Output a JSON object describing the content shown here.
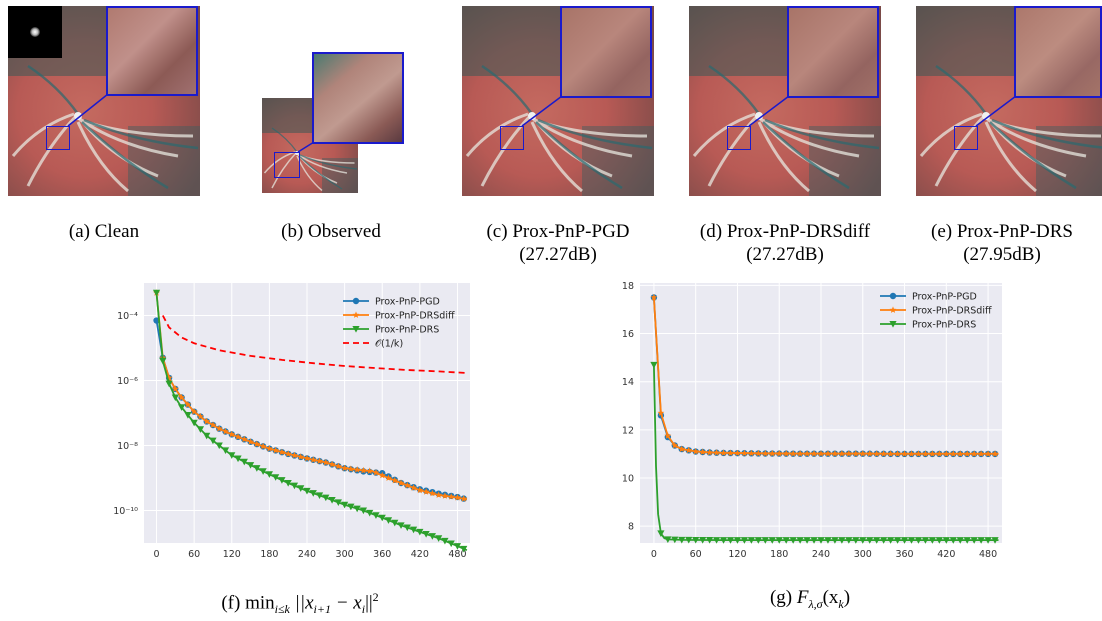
{
  "panels": [
    {
      "id": "a",
      "caption": "(a) Clean",
      "sub": ""
    },
    {
      "id": "b",
      "caption": "(b) Observed",
      "sub": ""
    },
    {
      "id": "c",
      "caption": "(c) Prox-PnP-PGD",
      "sub": "(27.27dB)"
    },
    {
      "id": "d",
      "caption": "(d) Prox-PnP-DRSdiff",
      "sub": "(27.27dB)"
    },
    {
      "id": "e",
      "caption": "(e) Prox-PnP-DRS",
      "sub": "(27.95dB)"
    }
  ],
  "colors": {
    "pgd": "#1f77b4",
    "drsdiff": "#ff7f0e",
    "drs": "#2ca02c",
    "ref": "#ff0000",
    "zoom_box": "#1a1acc",
    "plot_bg": "#eaeaf2"
  },
  "figure_f": {
    "caption_prefix": "(f) ",
    "caption_math": "min",
    "caption_sub": "i≤k",
    "caption_rest": " ||x",
    "caption_sub2": "i+1",
    "caption_rest2": " − x",
    "caption_sub3": "i",
    "caption_rest3": "||",
    "caption_sup": "2"
  },
  "figure_g": {
    "caption_prefix": "(g) ",
    "caption_F": "F",
    "caption_sub": "λ,σ",
    "caption_rest": "(x",
    "caption_sub2": "k",
    "caption_rest2": ")"
  },
  "chart_data": [
    {
      "type": "line",
      "yscale": "log",
      "xlim": [
        -20,
        500
      ],
      "ylim": [
        1e-11,
        0.001
      ],
      "xticks": [
        0,
        60,
        120,
        180,
        240,
        300,
        360,
        420,
        480
      ],
      "yticks": [
        {
          "v": 1e-10,
          "label": "10⁻¹⁰"
        },
        {
          "v": 1e-08,
          "label": "10⁻⁸"
        },
        {
          "v": 1e-06,
          "label": "10⁻⁶"
        },
        {
          "v": 0.0001,
          "label": "10⁻⁴"
        }
      ],
      "grid": true,
      "legend_position": "top-right",
      "series": [
        {
          "name": "Prox-PnP-PGD",
          "marker": "circle",
          "color": "#1f77b4",
          "x": [
            0,
            10,
            20,
            30,
            40,
            60,
            80,
            100,
            120,
            150,
            180,
            210,
            240,
            270,
            300,
            330,
            345,
            360,
            390,
            420,
            450,
            480,
            495
          ],
          "y": [
            7e-05,
            5e-06,
            1.2e-06,
            5.5e-07,
            3e-07,
            1.1e-07,
            5.5e-08,
            3.3e-08,
            2.2e-08,
            1.3e-08,
            8e-09,
            5.5e-09,
            4e-09,
            3e-09,
            2e-09,
            1.6e-09,
            1.5e-09,
            1.4e-09,
            7e-10,
            4.5e-10,
            3.3e-10,
            2.6e-10,
            2.2e-10
          ]
        },
        {
          "name": "Prox-PnP-DRSdiff",
          "marker": "star",
          "color": "#ff7f0e",
          "x": [
            0,
            10,
            20,
            30,
            40,
            60,
            80,
            100,
            120,
            150,
            180,
            210,
            240,
            270,
            300,
            330,
            345,
            360,
            390,
            420,
            450,
            480,
            495
          ],
          "y": [
            0.0005,
            5e-06,
            1.2e-06,
            5.5e-07,
            3e-07,
            1.1e-07,
            5.5e-08,
            3.3e-08,
            2.2e-08,
            1.3e-08,
            8e-09,
            5.5e-09,
            4e-09,
            3e-09,
            2e-09,
            1.7e-09,
            1.6e-09,
            1.2e-09,
            7e-10,
            4.2e-10,
            3e-10,
            2.5e-10,
            2.2e-10
          ]
        },
        {
          "name": "Prox-PnP-DRS",
          "marker": "triangle",
          "color": "#2ca02c",
          "x": [
            0,
            10,
            20,
            30,
            40,
            60,
            80,
            100,
            120,
            150,
            180,
            210,
            240,
            270,
            300,
            330,
            360,
            390,
            420,
            450,
            480,
            495
          ],
          "y": [
            0.0005,
            4e-06,
            8e-07,
            3e-07,
            1.5e-07,
            5e-08,
            2e-08,
            1e-08,
            5e-09,
            2.5e-09,
            1.3e-09,
            7e-10,
            4e-10,
            2.5e-10,
            1.5e-10,
            1e-10,
            6e-11,
            3.5e-11,
            2.2e-11,
            1.4e-11,
            8e-12,
            6e-12
          ]
        },
        {
          "name": "𝒪(1/k)",
          "marker": "none",
          "dashed": true,
          "color": "#ff0000",
          "x": [
            10,
            20,
            40,
            60,
            100,
            150,
            200,
            250,
            300,
            350,
            400,
            450,
            495
          ],
          "y": [
            0.0001,
            4.3e-05,
            2.1e-05,
            1.4e-05,
            8.5e-06,
            5.7e-06,
            4.3e-06,
            3.4e-06,
            2.8e-06,
            2.4e-06,
            2.1e-06,
            1.9e-06,
            1.7e-06
          ]
        }
      ]
    },
    {
      "type": "line",
      "yscale": "linear",
      "xlim": [
        -20,
        500
      ],
      "ylim": [
        7.3,
        18.1
      ],
      "xticks": [
        0,
        60,
        120,
        180,
        240,
        300,
        360,
        420,
        480
      ],
      "yticks": [
        {
          "v": 8,
          "label": "8"
        },
        {
          "v": 10,
          "label": "10"
        },
        {
          "v": 12,
          "label": "12"
        },
        {
          "v": 14,
          "label": "14"
        },
        {
          "v": 16,
          "label": "16"
        },
        {
          "v": 18,
          "label": "18"
        }
      ],
      "grid": true,
      "legend_position": "top-right",
      "series": [
        {
          "name": "Prox-PnP-PGD",
          "marker": "circle",
          "color": "#1f77b4",
          "x": [
            0,
            10,
            20,
            30,
            40,
            50,
            60,
            80,
            100,
            150,
            200,
            250,
            300,
            350,
            400,
            450,
            495
          ],
          "y": [
            17.5,
            12.6,
            11.7,
            11.35,
            11.2,
            11.15,
            11.1,
            11.06,
            11.04,
            11.02,
            11.01,
            11.01,
            11.01,
            11.0,
            11.0,
            11.0,
            11.0
          ]
        },
        {
          "name": "Prox-PnP-DRSdiff",
          "marker": "star",
          "color": "#ff7f0e",
          "x": [
            0,
            10,
            20,
            30,
            40,
            50,
            60,
            80,
            100,
            150,
            200,
            250,
            300,
            350,
            400,
            450,
            495
          ],
          "y": [
            17.5,
            12.7,
            11.75,
            11.35,
            11.2,
            11.15,
            11.1,
            11.06,
            11.04,
            11.02,
            11.01,
            11.01,
            11.01,
            11.0,
            11.0,
            11.0,
            11.0
          ]
        },
        {
          "name": "Prox-PnP-DRS",
          "marker": "triangle",
          "color": "#2ca02c",
          "x": [
            0,
            3,
            6,
            10,
            15,
            20,
            40,
            100,
            200,
            300,
            400,
            495
          ],
          "y": [
            14.7,
            10.5,
            8.5,
            7.7,
            7.5,
            7.45,
            7.43,
            7.42,
            7.42,
            7.42,
            7.42,
            7.42
          ]
        }
      ]
    }
  ]
}
